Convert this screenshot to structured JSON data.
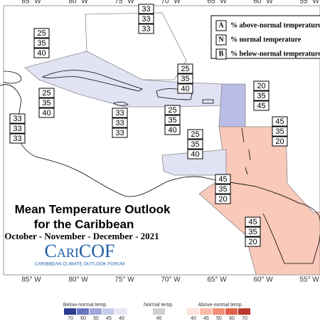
{
  "longitude_labels_top": [
    "85° W",
    "80° W",
    "75° W",
    "70° W",
    "65° W",
    "60° W",
    "55° W"
  ],
  "longitude_labels_bottom": [
    "85° W",
    "80° W",
    "75° W",
    "70° W",
    "65° W",
    "60° W",
    "55° W"
  ],
  "key": {
    "rows": [
      {
        "letter": "A",
        "text": "% above-normal temperature"
      },
      {
        "letter": "N",
        "text": "% normal temperature"
      },
      {
        "letter": "B",
        "text": "% below-normal temperature"
      }
    ]
  },
  "title": {
    "lines": [
      "Mean Temperature Outlook",
      "for the Caribbean"
    ],
    "period": "October - November - December - 2021"
  },
  "logo": {
    "name": "CariCOF",
    "tagline": "CARIBBEAN CLIMATE OUTLOOK FORUM"
  },
  "regions": [
    {
      "values": [
        33,
        33,
        33
      ]
    },
    {
      "values": [
        25,
        35,
        40
      ]
    },
    {
      "values": [
        25,
        35,
        40
      ]
    },
    {
      "values": [
        20,
        35,
        45
      ]
    },
    {
      "values": [
        25,
        35,
        40
      ]
    },
    {
      "values": [
        33,
        33,
        33
      ]
    },
    {
      "values": [
        33,
        33,
        33
      ]
    },
    {
      "values": [
        25,
        35,
        40
      ]
    },
    {
      "values": [
        45,
        35,
        20
      ]
    },
    {
      "values": [
        25,
        35,
        40
      ]
    },
    {
      "values": [
        45,
        35,
        20
      ]
    },
    {
      "values": [
        45,
        35,
        20
      ]
    }
  ],
  "colorbar": {
    "below": {
      "label": "Below-normal temp.",
      "ticks": [
        70,
        60,
        50,
        45,
        40
      ]
    },
    "normal": {
      "label": "Normal temp.",
      "ticks": [
        40
      ]
    },
    "above": {
      "label": "Above-normal temp.",
      "ticks": [
        40,
        45,
        50,
        60,
        70
      ]
    }
  }
}
